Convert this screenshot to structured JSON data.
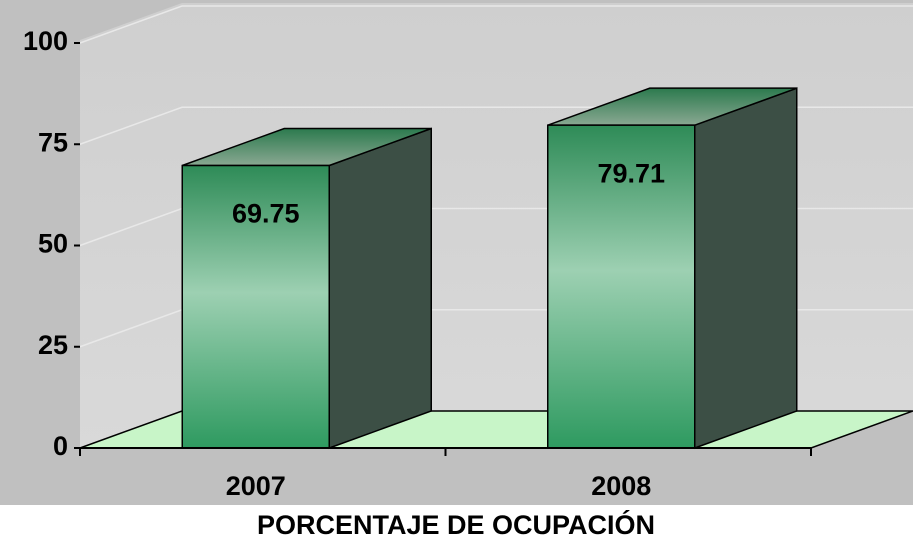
{
  "chart_data": {
    "type": "bar",
    "title": "PORCENTAJE DE OCUPACIÓN",
    "categories": [
      "2007",
      "2008"
    ],
    "values": [
      69.75,
      79.71
    ],
    "color": "#2e9a60",
    "ylim": [
      0,
      100
    ],
    "yticks": [
      0,
      25,
      50,
      75,
      100
    ],
    "grid": true
  }
}
